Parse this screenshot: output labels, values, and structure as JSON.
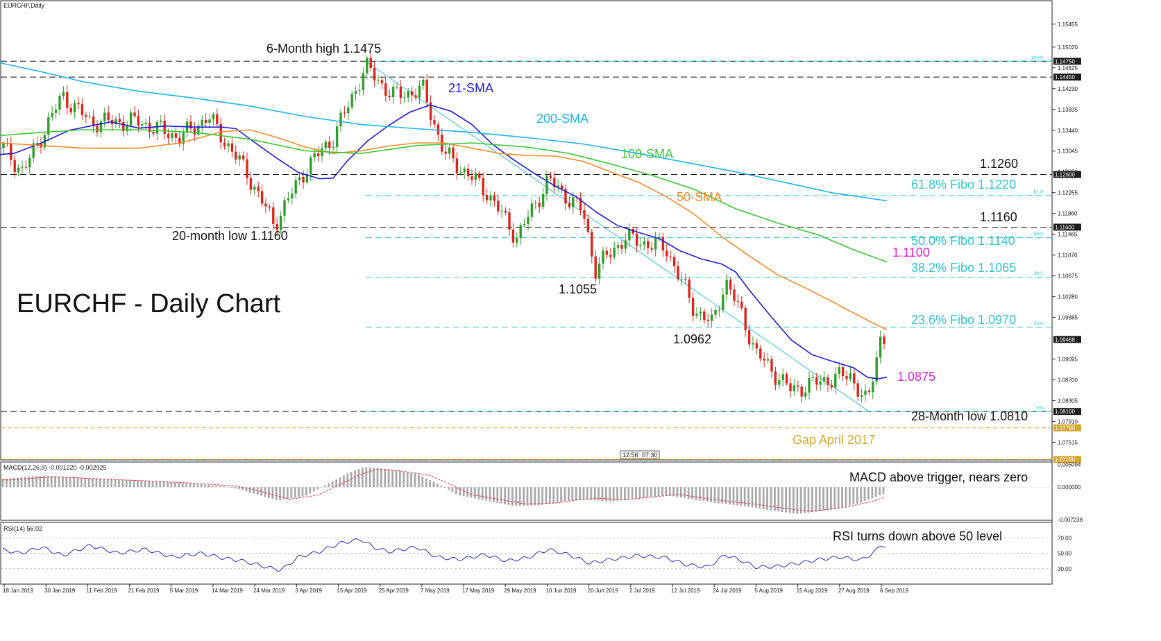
{
  "window": {
    "symbol_label": "EURCHF,Daily"
  },
  "chart_title": "EURCHF - Daily Chart",
  "chart_data": [
    {
      "type": "candlestick",
      "title": "EURCHF - Daily Chart",
      "ylim": [
        1.0718,
        1.159
      ],
      "y_ticks": [
        "1.15455",
        "1.15020",
        "1.14625",
        "1.14230",
        "1.13835",
        "1.13440",
        "1.13045",
        "1.12650",
        "1.12255",
        "1.11860",
        "1.11465",
        "1.11070",
        "1.10675",
        "1.10280",
        "1.09885",
        "1.09095",
        "1.08700",
        "1.08305",
        "1.07910",
        "1.07515"
      ],
      "x_ticks": [
        "18 Jan 2019",
        "30 Jan 2019",
        "11 Feb 2019",
        "21 Feb 2019",
        "5 Mar 2019",
        "14 Mar 2019",
        "24 Mar 2019",
        "3 Apr 2019",
        "15 Apr 2019",
        "25 Apr 2019",
        "7 May 2019",
        "17 May 2019",
        "29 May 2019",
        "10 Jun 2019",
        "20 Jun 2019",
        "2 Jul 2019",
        "12 Jul 2019",
        "24 Jul 2019",
        "5 Aug 2019",
        "15 Aug 2019",
        "27 Aug 2019",
        "6 Sep 2019"
      ],
      "price_tags": [
        {
          "text": "1.14750",
          "value": 1.1475,
          "style": "dark"
        },
        {
          "text": "1.14450",
          "value": 1.1445,
          "style": "dark"
        },
        {
          "text": "1.12600",
          "value": 1.126,
          "style": "dark"
        },
        {
          "text": "1.11600",
          "value": 1.116,
          "style": "dark"
        },
        {
          "text": "1.09468",
          "value": 1.09468,
          "style": "dark"
        },
        {
          "text": "1.08100",
          "value": 1.081,
          "style": "dark"
        },
        {
          "text": "1.07790",
          "value": 1.0779,
          "style": "gold"
        },
        {
          "text": "1.07190",
          "value": 1.0719,
          "style": "gold"
        }
      ],
      "levels": {
        "black": [
          1.1475,
          1.1445,
          1.126,
          1.116,
          1.081
        ],
        "fibo": [
          {
            "value": 1.1475,
            "label": "100.0"
          },
          {
            "value": 1.122,
            "label": "61.8"
          },
          {
            "value": 1.114,
            "label": "50.0"
          },
          {
            "value": 1.1065,
            "label": "38.2"
          },
          {
            "value": 1.097,
            "label": "23.6"
          },
          {
            "value": 1.081,
            "label": "0.0"
          }
        ],
        "gold": [
          1.0779,
          1.0719
        ]
      },
      "series": [
        {
          "name": "21-SMA",
          "color": "#1a1adc",
          "points": [
            [
              0,
              1.1298
            ],
            [
              20,
              1.13
            ],
            [
              60,
              1.132
            ],
            [
              100,
              1.1344
            ],
            [
              160,
              1.136
            ],
            [
              200,
              1.1348
            ],
            [
              240,
              1.1352
            ],
            [
              280,
              1.135
            ],
            [
              320,
              1.135
            ],
            [
              340,
              1.1347
            ],
            [
              370,
              1.1318
            ],
            [
              400,
              1.129
            ],
            [
              430,
              1.1264
            ],
            [
              460,
              1.1252
            ],
            [
              480,
              1.1253
            ],
            [
              500,
              1.1285
            ],
            [
              530,
              1.1324
            ],
            [
              560,
              1.1353
            ],
            [
              590,
              1.1378
            ],
            [
              620,
              1.1392
            ],
            [
              650,
              1.138
            ],
            [
              680,
              1.1355
            ],
            [
              710,
              1.1317
            ],
            [
              740,
              1.1288
            ],
            [
              770,
              1.1262
            ],
            [
              800,
              1.1238
            ],
            [
              830,
              1.1218
            ],
            [
              860,
              1.1188
            ],
            [
              890,
              1.1163
            ],
            [
              920,
              1.115
            ],
            [
              950,
              1.1138
            ],
            [
              980,
              1.1115
            ],
            [
              1010,
              1.11
            ],
            [
              1040,
              1.109
            ],
            [
              1060,
              1.1075
            ],
            [
              1080,
              1.104
            ],
            [
              1110,
              1.0992
            ],
            [
              1140,
              1.0946
            ],
            [
              1170,
              1.0918
            ],
            [
              1200,
              1.0905
            ],
            [
              1230,
              1.0893
            ],
            [
              1250,
              1.0875
            ],
            [
              1265,
              1.0872
            ],
            [
              1278,
              1.0875
            ]
          ]
        },
        {
          "name": "50-SMA",
          "color": "#f58a25",
          "points": [
            [
              0,
              1.132
            ],
            [
              60,
              1.1315
            ],
            [
              120,
              1.131
            ],
            [
              200,
              1.131
            ],
            [
              260,
              1.132
            ],
            [
              320,
              1.1341
            ],
            [
              360,
              1.1345
            ],
            [
              400,
              1.133
            ],
            [
              440,
              1.1312
            ],
            [
              480,
              1.13
            ],
            [
              520,
              1.1305
            ],
            [
              560,
              1.1314
            ],
            [
              600,
              1.132
            ],
            [
              640,
              1.132
            ],
            [
              680,
              1.131
            ],
            [
              720,
              1.13
            ],
            [
              760,
              1.1296
            ],
            [
              800,
              1.1295
            ],
            [
              840,
              1.1285
            ],
            [
              880,
              1.1265
            ],
            [
              920,
              1.1245
            ],
            [
              960,
              1.1218
            ],
            [
              1000,
              1.1185
            ],
            [
              1040,
              1.1142
            ],
            [
              1080,
              1.1105
            ],
            [
              1120,
              1.107
            ],
            [
              1160,
              1.1045
            ],
            [
              1200,
              1.1018
            ],
            [
              1240,
              1.099
            ],
            [
              1278,
              1.0965
            ]
          ]
        },
        {
          "name": "100-SMA",
          "color": "#38c932",
          "points": [
            [
              0,
              1.1334
            ],
            [
              60,
              1.134
            ],
            [
              120,
              1.1345
            ],
            [
              200,
              1.1345
            ],
            [
              280,
              1.134
            ],
            [
              360,
              1.1327
            ],
            [
              440,
              1.1305
            ],
            [
              520,
              1.13
            ],
            [
              600,
              1.1315
            ],
            [
              680,
              1.132
            ],
            [
              760,
              1.1312
            ],
            [
              820,
              1.13
            ],
            [
              880,
              1.128
            ],
            [
              940,
              1.1258
            ],
            [
              1000,
              1.1232
            ],
            [
              1060,
              1.1195
            ],
            [
              1120,
              1.1168
            ],
            [
              1180,
              1.1145
            ],
            [
              1230,
              1.1117
            ],
            [
              1278,
              1.1094
            ]
          ]
        },
        {
          "name": "200-SMA",
          "color": "#1ab2ee",
          "points": [
            [
              0,
              1.1472
            ],
            [
              60,
              1.1455
            ],
            [
              120,
              1.1436
            ],
            [
              200,
              1.1418
            ],
            [
              280,
              1.1405
            ],
            [
              360,
              1.139
            ],
            [
              440,
              1.137
            ],
            [
              520,
              1.1355
            ],
            [
              600,
              1.1347
            ],
            [
              680,
              1.134
            ],
            [
              760,
              1.133
            ],
            [
              840,
              1.1318
            ],
            [
              920,
              1.13
            ],
            [
              1000,
              1.128
            ],
            [
              1060,
              1.1265
            ],
            [
              1120,
              1.1248
            ],
            [
              1200,
              1.1225
            ],
            [
              1278,
              1.121
            ]
          ]
        }
      ]
    },
    {
      "type": "bar",
      "title": "MACD(12,26,9) -0.001220 -0.002925",
      "ylim": [
        -0.0074,
        0.0056
      ],
      "y_ticks": [
        "0.005094",
        "0.000000",
        "-0.007238"
      ],
      "note": "MACD above trigger, nears zero"
    },
    {
      "type": "line",
      "title": "RSI(14) 56.02",
      "ylim": [
        10,
        90
      ],
      "y_ticks": [
        "70.00",
        "50.00",
        "30.00"
      ],
      "note": "RSI turns down above 50 level"
    }
  ],
  "annotations": [
    {
      "id": "six-month-high",
      "text": "6-Month high 1.1475",
      "color": "#111111"
    },
    {
      "id": "sma21",
      "text": "21-SMA",
      "color": "#1a1adc"
    },
    {
      "id": "sma200",
      "text": "200-SMA",
      "color": "#1ab2ee"
    },
    {
      "id": "sma100",
      "text": "100-SMA",
      "color": "#38c932"
    },
    {
      "id": "sma50",
      "text": "50-SMA",
      "color": "#f58a25"
    },
    {
      "id": "lvl-1260",
      "text": "1.1260",
      "color": "#111111"
    },
    {
      "id": "fib618",
      "text": "61.8% Fibo 1.1220",
      "color": "#2ec6d2"
    },
    {
      "id": "lvl-1160",
      "text": "1.1160",
      "color": "#111111"
    },
    {
      "id": "fib50",
      "text": "50.0% Fibo 1.1140",
      "color": "#2ec6d2"
    },
    {
      "id": "lvl-1100",
      "text": "1.1100",
      "color": "#e020d8"
    },
    {
      "id": "fib382",
      "text": "38.2% Fibo 1.1065",
      "color": "#2ec6d2"
    },
    {
      "id": "twenty-month-low",
      "text": "20-month low 1.1160",
      "color": "#111111"
    },
    {
      "id": "lvl-1055",
      "text": "1.1055",
      "color": "#111111"
    },
    {
      "id": "fib236",
      "text": "23.6% Fibo 1.0970",
      "color": "#2ec6d2"
    },
    {
      "id": "lvl-1962",
      "text": "1.0962",
      "color": "#111111"
    },
    {
      "id": "lvl-1875",
      "text": "1.0875",
      "color": "#e020d8"
    },
    {
      "id": "twentyeight-month-low",
      "text": "28-Month low 1.0810",
      "color": "#111111"
    },
    {
      "id": "gap",
      "text": "Gap April 2017",
      "color": "#d9a62a"
    }
  ],
  "time_tags": [
    "12:56",
    "07:30"
  ],
  "colors": {
    "bull": "#2e9e28",
    "bear": "#dc2418",
    "macd_hist": "#a9a9a9",
    "macd_signal": "#e8282a",
    "rsi": "#2230c8",
    "fibo": "#2ec6d2",
    "gap": "#d9a62a"
  }
}
